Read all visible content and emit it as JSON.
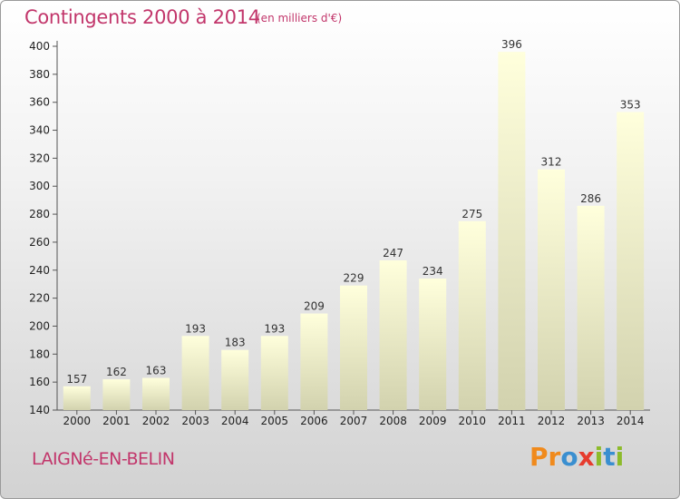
{
  "chart_data": {
    "type": "bar",
    "title": "Contingents 2000 à 2014",
    "subtitle": "(en milliers d'€)",
    "categories": [
      "2000",
      "2001",
      "2002",
      "2003",
      "2004",
      "2005",
      "2006",
      "2007",
      "2008",
      "2009",
      "2010",
      "2011",
      "2012",
      "2013",
      "2014"
    ],
    "values": [
      157,
      162,
      163,
      193,
      183,
      193,
      209,
      229,
      247,
      234,
      275,
      396,
      312,
      286,
      353
    ],
    "ylim": [
      140,
      400
    ],
    "yticks": [
      140,
      160,
      180,
      200,
      220,
      240,
      260,
      280,
      300,
      320,
      340,
      360,
      380,
      400
    ],
    "grid": false,
    "bar_color_top": "#ffffdc",
    "bar_color_bottom": "#d2d2ae"
  },
  "footer": {
    "place": "LAIGNé-EN-BELIN",
    "logo": [
      "P",
      "r",
      "o",
      "x",
      "i",
      "t",
      "i"
    ],
    "logo_colors": [
      "#f08a1c",
      "#f08a1c",
      "#3a8fd0",
      "#e63c2e",
      "#8dbb2b",
      "#3a8fd0",
      "#8dbb2b"
    ]
  },
  "theme": {
    "accent": "#c2366b"
  }
}
